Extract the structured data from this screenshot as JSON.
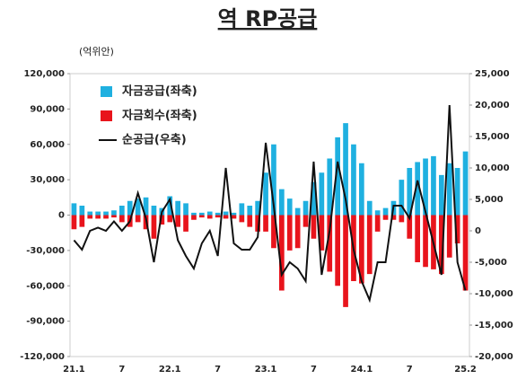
{
  "chart_data": {
    "type": "bar",
    "title": "역 RP공급",
    "y_label": "(억위안)",
    "categories": [
      "21.1",
      null,
      null,
      null,
      null,
      null,
      "7",
      null,
      null,
      null,
      null,
      null,
      "22.1",
      null,
      null,
      null,
      null,
      null,
      "7",
      null,
      null,
      null,
      null,
      null,
      "23.1",
      null,
      null,
      null,
      null,
      null,
      "7",
      null,
      null,
      null,
      null,
      null,
      "24.1",
      null,
      null,
      null,
      null,
      null,
      "7",
      null,
      null,
      null,
      null,
      null,
      null,
      "25.2"
    ],
    "series": [
      {
        "name": "자금공급(좌축)",
        "color": "#1fb0e0",
        "values": [
          10000,
          8000,
          3000,
          3000,
          3000,
          4000,
          8000,
          12000,
          14000,
          15000,
          8000,
          6000,
          16000,
          12000,
          10000,
          2000,
          2000,
          3000,
          2000,
          3000,
          2000,
          10000,
          8000,
          12000,
          36000,
          60000,
          22000,
          14000,
          6000,
          12000,
          28000,
          36000,
          48000,
          66000,
          78000,
          60000,
          44000,
          12000,
          4000,
          6000,
          12000,
          30000,
          40000,
          45000,
          48000,
          50000,
          34000,
          44000,
          40000,
          54000
        ]
      },
      {
        "name": "자금회수(좌축)",
        "color": "#e8141c",
        "values": [
          -12000,
          -10000,
          -3000,
          -3000,
          -3000,
          -2000,
          -6000,
          -10000,
          -6000,
          -12000,
          -20000,
          -8000,
          -6000,
          -10000,
          -14000,
          -4000,
          -2000,
          -3000,
          -2000,
          -3000,
          -3000,
          -6000,
          -10000,
          -14000,
          -14000,
          -28000,
          -64000,
          -30000,
          -28000,
          -10000,
          -20000,
          -30000,
          -48000,
          -60000,
          -78000,
          -56000,
          -58000,
          -50000,
          -14000,
          -4000,
          -4000,
          -6000,
          -20000,
          -40000,
          -44000,
          -46000,
          -50000,
          -36000,
          -24000,
          -64000
        ]
      },
      {
        "name": "순공급(우축)",
        "color": "#111111",
        "axis": "y2",
        "values": [
          -1500,
          -3000,
          0,
          500,
          0,
          1500,
          0,
          1500,
          6000,
          2000,
          -5000,
          3000,
          5000,
          -1500,
          -4000,
          -6000,
          -2000,
          0,
          -4000,
          10000,
          -2000,
          -3000,
          -3000,
          -1000,
          14000,
          4000,
          -7000,
          -5000,
          -6000,
          -8000,
          11000,
          -7000,
          0,
          11000,
          5000,
          -3000,
          -8000,
          -11000,
          -5000,
          -5000,
          4000,
          4000,
          2000,
          8000,
          3000,
          -2000,
          -7000,
          20000,
          -5000,
          -9500
        ]
      }
    ],
    "ylim": [
      -120000,
      120000
    ],
    "yticks": [
      {
        "value": -120000,
        "label": "-120,000"
      },
      {
        "value": -90000,
        "label": "-90,000"
      },
      {
        "value": -60000,
        "label": "-60,000"
      },
      {
        "value": -30000,
        "label": "-30,000"
      },
      0,
      {
        "value": 30000,
        "label": "30,000"
      },
      {
        "value": 60000,
        "label": "60,000"
      },
      {
        "value": 90000,
        "label": "90,000"
      },
      {
        "value": 120000,
        "label": "120,000"
      }
    ],
    "y2lim": [
      -20000,
      25000
    ],
    "y2ticks": [
      {
        "value": -20000,
        "label": "-20,000"
      },
      {
        "value": -15000,
        "label": "-15,000"
      },
      {
        "value": -10000,
        "label": "-10,000"
      },
      {
        "value": -5000,
        "label": "-5,000"
      },
      0,
      {
        "value": 5000,
        "label": "5,000"
      },
      {
        "value": 10000,
        "label": "10,000"
      },
      {
        "value": 15000,
        "label": "15,000"
      },
      {
        "value": 20000,
        "label": "20,000"
      },
      {
        "value": 25000,
        "label": "25,000"
      }
    ],
    "legend": "upper left"
  }
}
